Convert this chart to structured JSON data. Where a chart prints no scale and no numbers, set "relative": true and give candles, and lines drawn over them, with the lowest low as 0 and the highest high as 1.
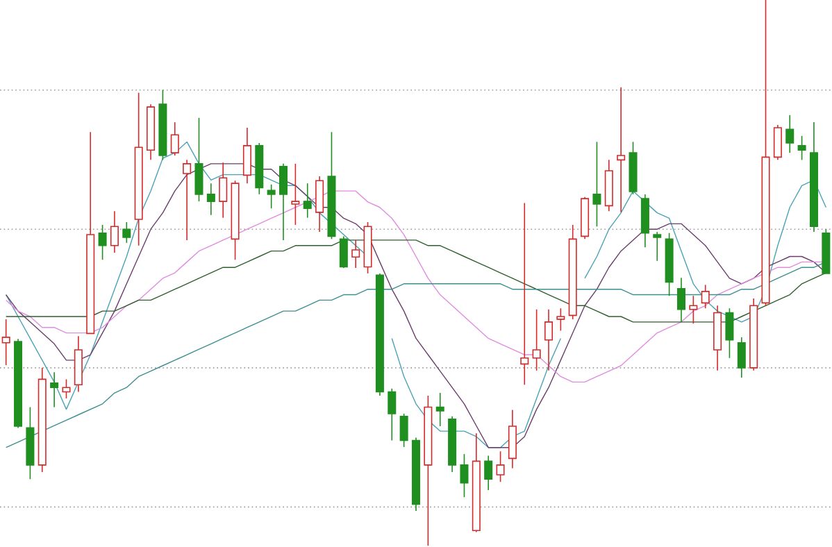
{
  "chart_data": {
    "type": "candlestick",
    "relative": true,
    "categories": [
      null,
      null,
      null,
      null,
      null,
      null,
      null,
      null,
      null,
      null,
      null,
      null,
      null,
      null,
      null,
      null,
      null,
      null,
      null,
      null,
      null,
      null,
      null,
      null,
      null,
      null,
      null,
      null,
      null,
      null,
      null,
      null,
      null,
      null,
      null,
      null,
      null,
      null,
      null,
      null,
      null,
      null,
      null,
      null,
      null,
      null,
      null,
      null,
      null,
      null,
      null,
      null,
      null,
      null,
      null,
      null,
      null,
      null,
      null,
      null,
      null,
      null,
      null,
      null,
      null,
      null,
      null,
      null,
      null
    ],
    "ohlc": [
      [
        0.372,
        0.415,
        0.331,
        0.382
      ],
      [
        0.374,
        0.379,
        0.216,
        0.219
      ],
      [
        0.216,
        0.254,
        0.122,
        0.148
      ],
      [
        0.148,
        0.326,
        0.135,
        0.305
      ],
      [
        0.298,
        0.318,
        0.254,
        0.29
      ],
      [
        0.282,
        0.305,
        0.27,
        0.29
      ],
      [
        0.295,
        0.384,
        0.282,
        0.359
      ],
      [
        0.389,
        0.758,
        0.389,
        0.57
      ],
      [
        0.573,
        0.588,
        0.524,
        0.55
      ],
      [
        0.55,
        0.613,
        0.537,
        0.585
      ],
      [
        0.58,
        0.593,
        0.555,
        0.565
      ],
      [
        0.598,
        0.83,
        0.55,
        0.73
      ],
      [
        0.725,
        0.809,
        0.707,
        0.804
      ],
      [
        0.809,
        0.835,
        0.707,
        0.715
      ],
      [
        0.72,
        0.776,
        0.715,
        0.753
      ],
      [
        0.682,
        0.707,
        0.56,
        0.7
      ],
      [
        0.7,
        0.784,
        0.631,
        0.644
      ],
      [
        0.644,
        0.664,
        0.606,
        0.631
      ],
      [
        0.631,
        0.702,
        0.601,
        0.674
      ],
      [
        0.562,
        0.669,
        0.524,
        0.664
      ],
      [
        0.679,
        0.766,
        0.664,
        0.733
      ],
      [
        0.733,
        0.738,
        0.644,
        0.656
      ],
      [
        0.651,
        0.662,
        0.618,
        0.644
      ],
      [
        0.695,
        0.7,
        0.56,
        0.644
      ],
      [
        0.626,
        0.7,
        0.588,
        0.631
      ],
      [
        0.631,
        0.664,
        0.601,
        0.618
      ],
      [
        0.611,
        0.677,
        0.575,
        0.669
      ],
      [
        0.677,
        0.758,
        0.562,
        0.567
      ],
      [
        0.562,
        0.567,
        0.509,
        0.511
      ],
      [
        0.529,
        0.56,
        0.509,
        0.542
      ],
      [
        0.511,
        0.593,
        0.499,
        0.585
      ],
      [
        0.496,
        0.499,
        0.275,
        0.282
      ],
      [
        0.282,
        0.288,
        0.193,
        0.242
      ],
      [
        0.237,
        0.242,
        0.181,
        0.193
      ],
      [
        0.193,
        0.198,
        0.064,
        0.076
      ],
      [
        0.148,
        0.275,
        0.0,
        0.254
      ],
      [
        0.254,
        0.28,
        0.219,
        0.247
      ],
      [
        0.232,
        0.237,
        0.135,
        0.148
      ],
      [
        0.148,
        0.168,
        0.089,
        0.115
      ],
      [
        0.028,
        0.206,
        0.025,
        0.155
      ],
      [
        0.155,
        0.165,
        0.102,
        0.122
      ],
      [
        0.13,
        0.173,
        0.117,
        0.148
      ],
      [
        0.16,
        0.249,
        0.142,
        0.219
      ],
      [
        0.333,
        0.628,
        0.295,
        0.344
      ],
      [
        0.344,
        0.433,
        0.321,
        0.359
      ],
      [
        0.377,
        0.433,
        0.321,
        0.41
      ],
      [
        0.415,
        0.435,
        0.394,
        0.42
      ],
      [
        0.422,
        0.588,
        0.415,
        0.562
      ],
      [
        0.567,
        0.639,
        0.562,
        0.636
      ],
      [
        0.644,
        0.74,
        0.585,
        0.626
      ],
      [
        0.623,
        0.707,
        0.613,
        0.687
      ],
      [
        0.707,
        0.84,
        0.611,
        0.715
      ],
      [
        0.72,
        0.74,
        0.644,
        0.649
      ],
      [
        0.636,
        0.644,
        0.547,
        0.573
      ],
      [
        0.57,
        0.575,
        0.522,
        0.565
      ],
      [
        0.562,
        0.573,
        0.458,
        0.483
      ],
      [
        0.471,
        0.491,
        0.41,
        0.433
      ],
      [
        0.433,
        0.458,
        0.407,
        0.44
      ],
      [
        0.445,
        0.478,
        0.435,
        0.466
      ],
      [
        0.359,
        0.44,
        0.321,
        0.427
      ],
      [
        0.427,
        0.435,
        0.344,
        0.377
      ],
      [
        0.372,
        0.382,
        0.308,
        0.326
      ],
      [
        0.326,
        0.453,
        0.321,
        0.44
      ],
      [
        0.445,
        1.0,
        0.44,
        0.712
      ],
      [
        0.712,
        0.771,
        0.707,
        0.766
      ],
      [
        0.763,
        0.789,
        0.72,
        0.738
      ],
      [
        0.733,
        0.751,
        0.707,
        0.725
      ],
      [
        0.72,
        0.776,
        0.575,
        0.585
      ],
      [
        0.573,
        0.58,
        0.499,
        0.499
      ]
    ],
    "series": [
      {
        "type": "line",
        "color": "#4aa3b5",
        "values": [
          0.46,
          0.42,
          0.38,
          0.34,
          0.3,
          0.25,
          0.3,
          0.35,
          0.41,
          0.47,
          0.53,
          0.6,
          0.65,
          0.71,
          0.72,
          0.74,
          0.7,
          0.67,
          0.68,
          0.68,
          0.68,
          0.68,
          0.67,
          0.66,
          0.66,
          0.64,
          0.61,
          0.59,
          0.57,
          0.55,
          0.53,
          null,
          0.38,
          0.31,
          0.26,
          0.23,
          0.21,
          0.21,
          0.21,
          0.2,
          0.18,
          0.18,
          0.2,
          0.21,
          0.27,
          0.33,
          0.38,
          null,
          0.49,
          0.53,
          0.58,
          0.61,
          0.65,
          0.63,
          0.61,
          0.6,
          0.54,
          0.48,
          0.45,
          0.43,
          0.42,
          0.41,
          0.42,
          0.47,
          0.55,
          0.62,
          0.66,
          0.67,
          0.62
        ]
      },
      {
        "type": "line",
        "color": "#6b3d6b",
        "values": [
          0.46,
          0.43,
          0.41,
          0.39,
          0.37,
          0.34,
          0.34,
          0.35,
          0.39,
          0.43,
          0.48,
          0.53,
          0.58,
          0.61,
          0.65,
          0.68,
          0.69,
          0.7,
          0.7,
          0.7,
          0.7,
          0.69,
          0.69,
          0.67,
          0.66,
          0.64,
          0.62,
          0.62,
          0.6,
          0.59,
          0.57,
          0.52,
          0.47,
          0.43,
          0.38,
          0.35,
          0.32,
          0.29,
          0.26,
          0.22,
          0.18,
          0.18,
          0.18,
          0.2,
          0.25,
          0.29,
          0.34,
          0.39,
          0.44,
          0.47,
          0.51,
          0.54,
          0.56,
          0.58,
          0.58,
          0.59,
          0.59,
          0.57,
          0.55,
          0.52,
          0.49,
          0.48,
          0.49,
          0.51,
          0.52,
          0.53,
          0.53,
          0.52,
          0.5
        ]
      },
      {
        "type": "line",
        "color": "#e08ce0",
        "values": [
          0.45,
          0.43,
          0.42,
          0.4,
          0.4,
          0.39,
          0.39,
          0.39,
          0.4,
          0.42,
          0.44,
          0.45,
          0.47,
          0.49,
          0.5,
          0.52,
          0.54,
          0.55,
          0.56,
          0.57,
          0.58,
          0.59,
          0.6,
          0.61,
          0.62,
          0.63,
          0.64,
          0.65,
          0.65,
          0.65,
          0.63,
          0.62,
          0.6,
          0.57,
          0.53,
          0.49,
          0.46,
          0.44,
          0.42,
          0.4,
          0.38,
          0.37,
          0.36,
          0.35,
          0.35,
          0.33,
          0.31,
          0.3,
          0.3,
          0.31,
          0.32,
          0.33,
          0.35,
          0.37,
          0.39,
          0.4,
          0.41,
          0.43,
          0.44,
          0.46,
          0.47,
          0.48,
          0.49,
          0.5,
          0.51,
          0.51,
          0.52,
          0.52,
          0.52
        ]
      },
      {
        "type": "line",
        "color": "#2f5f2f",
        "values": [
          0.42,
          0.42,
          0.42,
          0.42,
          0.42,
          0.42,
          0.42,
          0.42,
          0.43,
          0.43,
          0.44,
          0.45,
          0.45,
          0.46,
          0.47,
          0.48,
          0.49,
          0.5,
          0.51,
          0.51,
          0.52,
          0.53,
          0.54,
          0.54,
          0.55,
          0.55,
          0.55,
          0.55,
          0.56,
          0.56,
          0.56,
          0.56,
          0.56,
          0.56,
          0.56,
          0.55,
          0.55,
          0.54,
          0.53,
          0.52,
          0.51,
          0.5,
          0.49,
          0.48,
          0.47,
          0.46,
          0.45,
          0.44,
          0.44,
          0.43,
          0.42,
          0.42,
          0.41,
          0.41,
          0.41,
          0.41,
          0.41,
          0.41,
          0.41,
          0.41,
          0.41,
          0.42,
          0.43,
          0.44,
          0.45,
          0.46,
          0.48,
          0.49,
          0.5
        ]
      },
      {
        "type": "line",
        "color": "#3c8f8f",
        "values": [
          0.18,
          0.19,
          0.2,
          0.21,
          0.22,
          0.23,
          0.24,
          0.25,
          0.26,
          0.28,
          0.29,
          0.31,
          0.32,
          0.33,
          0.34,
          0.35,
          0.36,
          0.37,
          0.38,
          0.39,
          0.4,
          0.41,
          0.42,
          0.43,
          0.43,
          0.44,
          0.45,
          0.45,
          0.46,
          0.46,
          0.47,
          0.47,
          0.47,
          0.48,
          0.48,
          0.48,
          0.48,
          0.48,
          0.48,
          0.48,
          0.48,
          0.48,
          0.47,
          0.47,
          0.47,
          0.47,
          0.47,
          0.47,
          0.47,
          0.47,
          0.47,
          0.47,
          0.46,
          0.46,
          0.46,
          0.46,
          0.46,
          0.46,
          0.46,
          0.46,
          0.46,
          0.47,
          0.47,
          0.48,
          0.49,
          0.5,
          0.51,
          0.51,
          0.52
        ]
      }
    ],
    "ref_lines": [
      {
        "axis": "y",
        "value": 0.835,
        "color": "#9a9a9a",
        "line_style": "dotted"
      },
      {
        "axis": "y",
        "value": 0.58,
        "color": "#9a9a9a",
        "line_style": "dotted"
      },
      {
        "axis": "y",
        "value": 0.326,
        "color": "#9a9a9a",
        "line_style": "dotted"
      },
      {
        "axis": "y",
        "value": 0.071,
        "color": "#9a9a9a",
        "line_style": "dotted"
      }
    ]
  }
}
